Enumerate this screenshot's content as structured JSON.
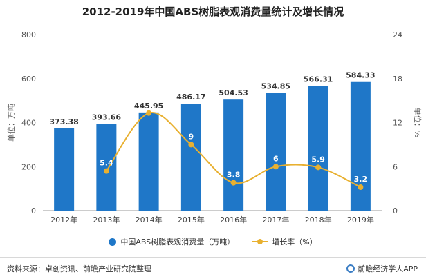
{
  "title": "2012-2019年中国ABS树脂表观消费量统计及增长情况",
  "colors": {
    "bar": "#1f77c8",
    "line": "#e8b030",
    "axis": "#999999",
    "grid": "#e6e6e6"
  },
  "chart_data": {
    "type": "bar",
    "categories": [
      "2012年",
      "2013年",
      "2014年",
      "2015年",
      "2016年",
      "2017年",
      "2018年",
      "2019年"
    ],
    "series": [
      {
        "name": "中国ABS树脂表观消费量（万吨）",
        "type": "bar",
        "axis": "left",
        "values": [
          373.38,
          393.66,
          445.95,
          486.17,
          504.53,
          534.85,
          566.31,
          584.33
        ],
        "labels": [
          "373.38",
          "393.66",
          "445.95",
          "486.17",
          "504.53",
          "534.85",
          "566.31",
          "584.33"
        ]
      },
      {
        "name": "增长率（%）",
        "type": "line",
        "axis": "right",
        "values": [
          null,
          5.4,
          13.3,
          9,
          3.8,
          6,
          5.9,
          3.2
        ],
        "labels": [
          "",
          "5.4",
          "",
          "9",
          "3.8",
          "6",
          "5.9",
          "3.2"
        ]
      }
    ],
    "ylabel": "单位：万吨",
    "y2label": "单位：%",
    "ylim": [
      0,
      800
    ],
    "y2lim": [
      0,
      24
    ],
    "yticks": [
      "0",
      "200",
      "400",
      "600",
      "800"
    ],
    "y2ticks": [
      "0",
      "6",
      "12",
      "18",
      "24"
    ],
    "grid": false,
    "legend_position": "bottom"
  },
  "footer": {
    "source": "资料来源：卓创资讯、前瞻产业研究院整理",
    "brand": "前瞻经济学人APP"
  }
}
